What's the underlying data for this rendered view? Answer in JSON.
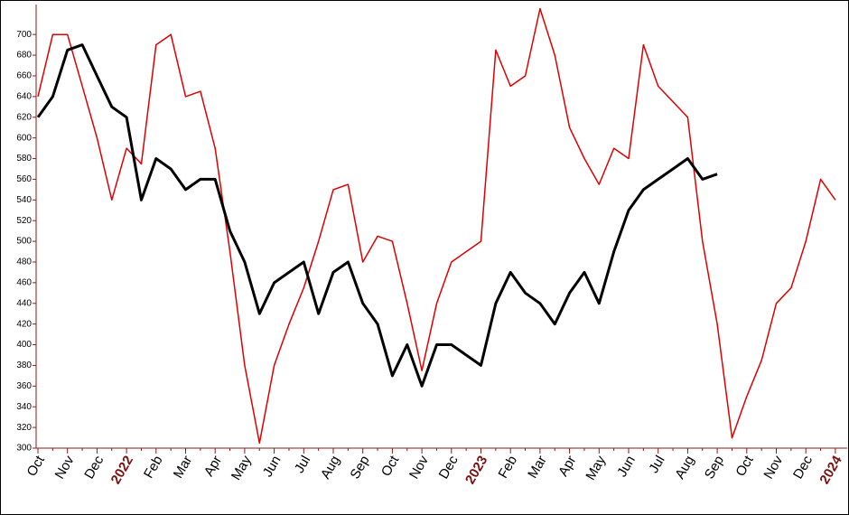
{
  "chart_data": {
    "type": "line",
    "categories": [
      "Oct",
      null,
      "Nov",
      null,
      "Dec",
      null,
      "2022",
      null,
      "Feb",
      null,
      "Mar",
      null,
      "Apr",
      null,
      "May",
      null,
      "Jun",
      null,
      "Jul",
      null,
      "Aug",
      null,
      "Sep",
      null,
      "Oct",
      null,
      "Nov",
      null,
      "Dec",
      null,
      "2023",
      null,
      "Feb",
      null,
      "Mar",
      null,
      "Apr",
      null,
      "May",
      null,
      "Jun",
      null,
      "Jul",
      null,
      "Aug",
      null,
      "Sep",
      null,
      "Oct",
      null,
      "Nov",
      null,
      "Dec",
      null,
      "2024"
    ],
    "series": [
      {
        "color": "#e00000",
        "values": [
          640,
          700,
          700,
          650,
          600,
          540,
          590,
          575,
          690,
          700,
          640,
          645,
          590,
          490,
          380,
          305,
          380,
          420,
          455,
          500,
          550,
          555,
          480,
          505,
          500,
          440,
          375,
          440,
          480,
          490,
          500,
          685,
          650,
          660,
          725,
          680,
          610,
          580,
          555,
          590,
          580,
          690,
          650,
          635,
          620,
          500,
          420,
          310,
          350,
          385,
          440,
          455,
          500,
          560,
          540
        ]
      },
      {
        "color": "#000000",
        "values": [
          620,
          640,
          685,
          690,
          660,
          630,
          620,
          540,
          580,
          570,
          550,
          560,
          560,
          510,
          480,
          430,
          460,
          470,
          480,
          430,
          470,
          480,
          440,
          420,
          370,
          400,
          360,
          400,
          400,
          390,
          380,
          440,
          470,
          450,
          440,
          420,
          450,
          470,
          440,
          490,
          530,
          550,
          560,
          570,
          580,
          560,
          565,
          null,
          null,
          null,
          null,
          null,
          null,
          null,
          null
        ]
      }
    ],
    "ylim": [
      300,
      729
    ],
    "yticks": [
      300,
      320,
      340,
      360,
      380,
      400,
      420,
      440,
      460,
      480,
      500,
      520,
      540,
      560,
      580,
      600,
      620,
      640,
      660,
      680,
      700
    ]
  }
}
